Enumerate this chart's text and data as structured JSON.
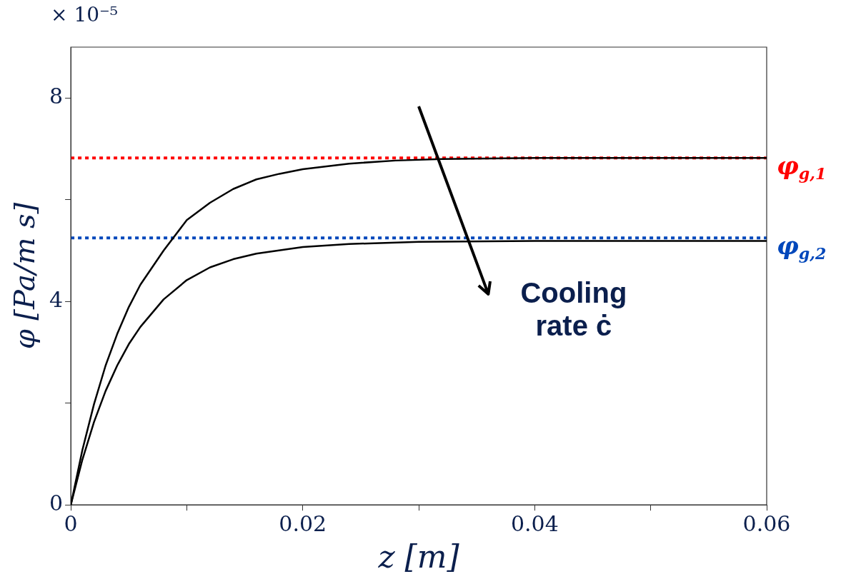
{
  "chart_data": {
    "type": "line",
    "xlabel": "z [m]",
    "ylabel": "φ [Pa/m s]",
    "annotations": [
      "× 10⁻⁵",
      "Cooling rate ċ"
    ],
    "xlim": [
      0,
      0.06
    ],
    "ylim": [
      0,
      9
    ],
    "xticks": [
      0,
      {
        "value": 0.01,
        "label": null
      },
      0.02,
      {
        "value": 0.03,
        "label": null
      },
      0.04,
      {
        "value": 0.05,
        "label": null
      },
      0.06
    ],
    "yticks": [
      0,
      {
        "value": 2,
        "label": null
      },
      4,
      {
        "value": 6,
        "label": null
      },
      8
    ],
    "grid": false,
    "legend": false,
    "marker": "none",
    "line_style": "solid",
    "series": [
      {
        "color": "#000000",
        "x": [
          0,
          0.001,
          0.002,
          0.003,
          0.004,
          0.005,
          0.006,
          0.008,
          0.01,
          0.012,
          0.014,
          0.016,
          0.018,
          0.02,
          0.024,
          0.028,
          0.032,
          0.04,
          0.06
        ],
        "values": [
          0,
          1.08,
          1.98,
          2.74,
          3.36,
          3.89,
          4.33,
          5.0,
          5.6,
          5.94,
          6.21,
          6.4,
          6.51,
          6.6,
          6.71,
          6.77,
          6.8,
          6.82,
          6.82
        ]
      },
      {
        "color": "#000000",
        "x": [
          0,
          0.001,
          0.002,
          0.003,
          0.004,
          0.005,
          0.006,
          0.008,
          0.01,
          0.012,
          0.014,
          0.016,
          0.02,
          0.024,
          0.03,
          0.04,
          0.06
        ],
        "values": [
          0,
          0.89,
          1.63,
          2.24,
          2.74,
          3.16,
          3.5,
          4.04,
          4.42,
          4.67,
          4.83,
          4.94,
          5.07,
          5.13,
          5.17,
          5.19,
          5.19
        ]
      }
    ],
    "ref_lines": [
      {
        "axis": "y",
        "value": 6.82,
        "label": "φ$_{g,1}$",
        "color": "#ff0000",
        "line_style": "dotted"
      },
      {
        "axis": "y",
        "value": 5.25,
        "label": "φ$_{g,2}$",
        "color": "#0047bb",
        "line_style": "dotted"
      }
    ]
  }
}
